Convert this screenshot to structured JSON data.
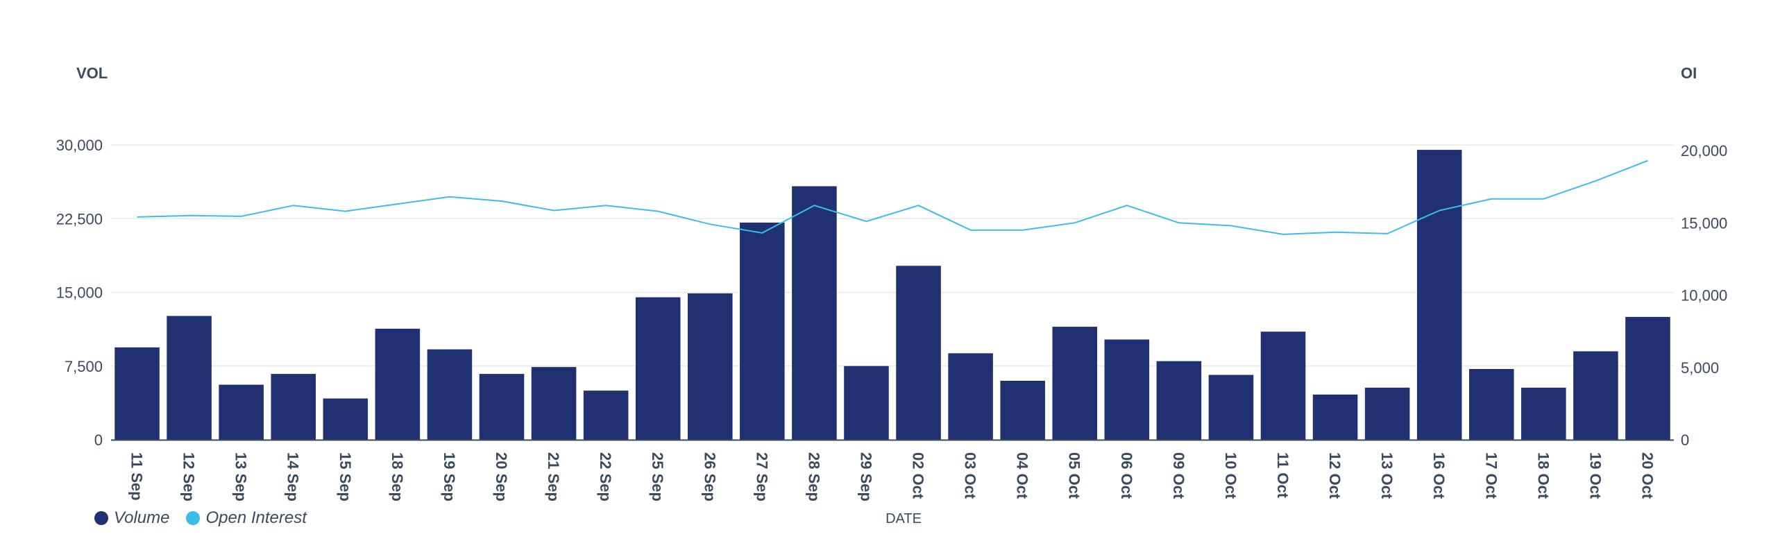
{
  "chart_data": {
    "type": "bar",
    "title": "",
    "xlabel": "DATE",
    "ylabel_left": "VOL",
    "ylabel_right": "OI",
    "categories": [
      "11 Sep",
      "12 Sep",
      "13 Sep",
      "14 Sep",
      "15 Sep",
      "18 Sep",
      "19 Sep",
      "20 Sep",
      "21 Sep",
      "22 Sep",
      "25 Sep",
      "26 Sep",
      "27 Sep",
      "28 Sep",
      "29 Sep",
      "02 Oct",
      "03 Oct",
      "04 Oct",
      "05 Oct",
      "06 Oct",
      "09 Oct",
      "10 Oct",
      "11 Oct",
      "12 Oct",
      "13 Oct",
      "16 Oct",
      "17 Oct",
      "18 Oct",
      "19 Oct",
      "20 Oct"
    ],
    "ylim_left": [
      0,
      30000
    ],
    "yticks_left": [
      0,
      7500,
      15000,
      22500,
      30000
    ],
    "ytick_labels_left": [
      "0",
      "7,500",
      "15,000",
      "22,500",
      "30,000"
    ],
    "ylim_right": [
      0,
      20000
    ],
    "yticks_right": [
      0,
      5000,
      10000,
      15000,
      20000
    ],
    "ytick_labels_right": [
      "0",
      "5,000",
      "10,000",
      "15,000",
      "20,000"
    ],
    "legend_position": "bottom-left",
    "series": [
      {
        "name": "Volume",
        "type": "bar",
        "axis": "left",
        "color": "#1f3171",
        "values": [
          9400,
          12600,
          5600,
          6700,
          4200,
          11300,
          9200,
          6700,
          7400,
          5000,
          14500,
          14900,
          22100,
          25800,
          7500,
          17700,
          8800,
          6000,
          11500,
          10200,
          8000,
          6600,
          11000,
          4600,
          5300,
          29500,
          7200,
          5300,
          9000,
          12500
        ]
      },
      {
        "name": "Open Interest",
        "type": "line",
        "axis": "right",
        "color": "#3bbceb",
        "values": [
          15400,
          15500,
          15450,
          16200,
          15800,
          16300,
          16800,
          16500,
          15850,
          16200,
          15800,
          14900,
          14300,
          16200,
          15100,
          16200,
          14500,
          14500,
          15000,
          16200,
          15000,
          14800,
          14200,
          14350,
          14250,
          15850,
          16650,
          16650,
          17900,
          19300
        ]
      }
    ]
  }
}
